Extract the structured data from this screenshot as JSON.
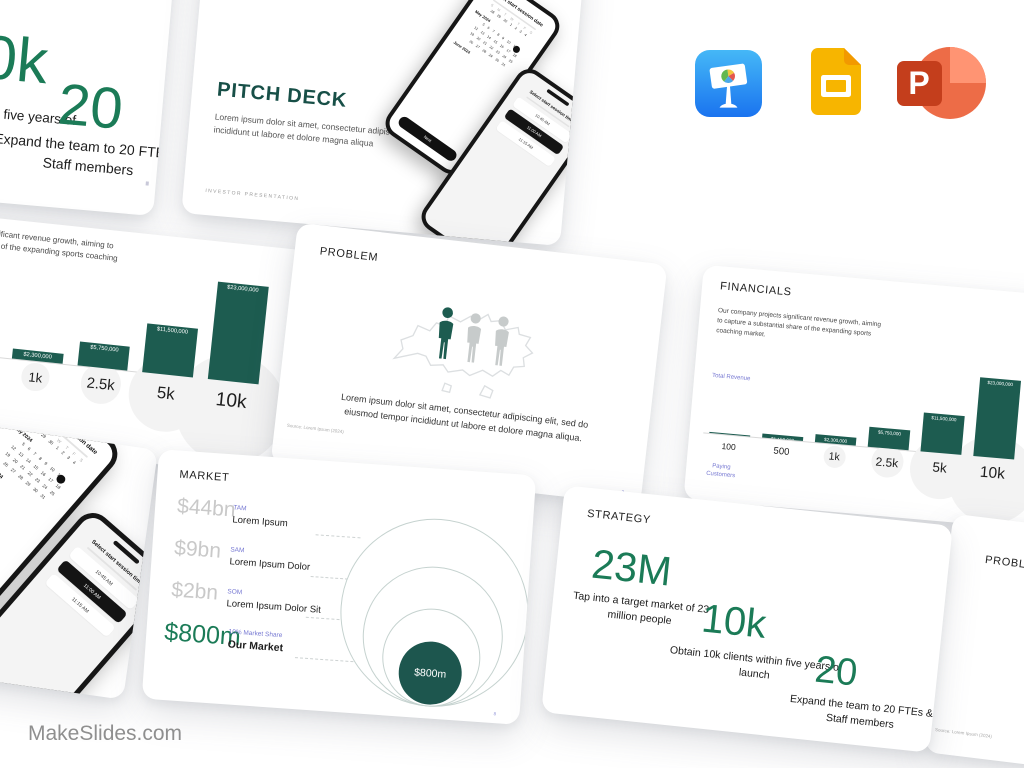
{
  "page": {
    "brand": "MakeSlides.com"
  },
  "app_icons": {
    "keynote": "Keynote",
    "google_slides": "Google Slides",
    "powerpoint": "PowerPoint",
    "powerpoint_letter": "P"
  },
  "slides": {
    "cover": {
      "title": "PITCH DECK",
      "body": "Lorem ipsum dolor sit amet, consectetur adipiscing elit, sed do eiusmod tempor incididunt ut labore et dolore magna aliqua",
      "footer": "INVESTOR PRESENTATION",
      "phone_date": {
        "header": "Select start session date",
        "weekdays": "S M T W T F S",
        "lead_row": "28 29 30 1 2 3 4",
        "month1": "May 2024",
        "grid": [
          "5 6 7 8 9 10 11",
          "12 13 14 15 16 17 18",
          "19 20 21 22 23 24 25",
          "26 27 28 29 30 31"
        ],
        "month2": "June 2024",
        "button": "Next"
      },
      "phone_time": {
        "header": "Select start session time",
        "times": [
          "10:45 AM",
          "11:00 AM",
          "11:15 AM"
        ]
      }
    },
    "problem": {
      "title": "PROBLEM",
      "body": "Lorem ipsum dolor sit amet, consectetur adipiscing elit, sed do eiusmod tempor incididunt ut labore et dolore magna aliqua.",
      "source": "Source: Lorem Ipsum (2024)",
      "page": "3"
    },
    "financials": {
      "title": "FINANCIALS",
      "body": "Our company projects significant revenue growth, aiming to capture a substantial share of the expanding sports coaching market.",
      "chart": {
        "type": "bar",
        "x_categories": [
          "100",
          "500",
          "1k",
          "2.5k",
          "5k",
          "10k"
        ],
        "values": [
          230000,
          1150000,
          2300000,
          5750000,
          11500000,
          23000000
        ],
        "bar_labels": [
          "",
          "$1,150,000",
          "$2,300,000",
          "$5,750,000",
          "$11,500,000",
          "$23,000,000"
        ],
        "y_label": "Total Revenue",
        "x_label": "Paying Customers"
      }
    },
    "market": {
      "title": "MARKET",
      "rows": [
        {
          "value": "$44bn",
          "tag": "TAM",
          "label": "Lorem Ipsum"
        },
        {
          "value": "$9bn",
          "tag": "SAM",
          "label": "Lorem Ipsum Dolor"
        },
        {
          "value": "$2bn",
          "tag": "SOM",
          "label": "Lorem Ipsum Dolor Sit"
        },
        {
          "value": "$800m",
          "tag": "10% Market Share",
          "label": "Our Market"
        }
      ],
      "bubble": "$800m",
      "page": "8"
    },
    "strategy": {
      "title": "STRATEGY",
      "stats": [
        {
          "value": "23M",
          "caption": "Tap into a target market of 23 million people"
        },
        {
          "value": "10k",
          "caption": "Obtain 10k clients within five years of launch"
        },
        {
          "value": "20",
          "caption": "Expand the team to 20 FTEs & Staff members"
        }
      ]
    }
  },
  "colors": {
    "teal": "#1d5c50",
    "green": "#1b7b57",
    "purple": "#7678d2",
    "cover_title": "#174f47"
  }
}
